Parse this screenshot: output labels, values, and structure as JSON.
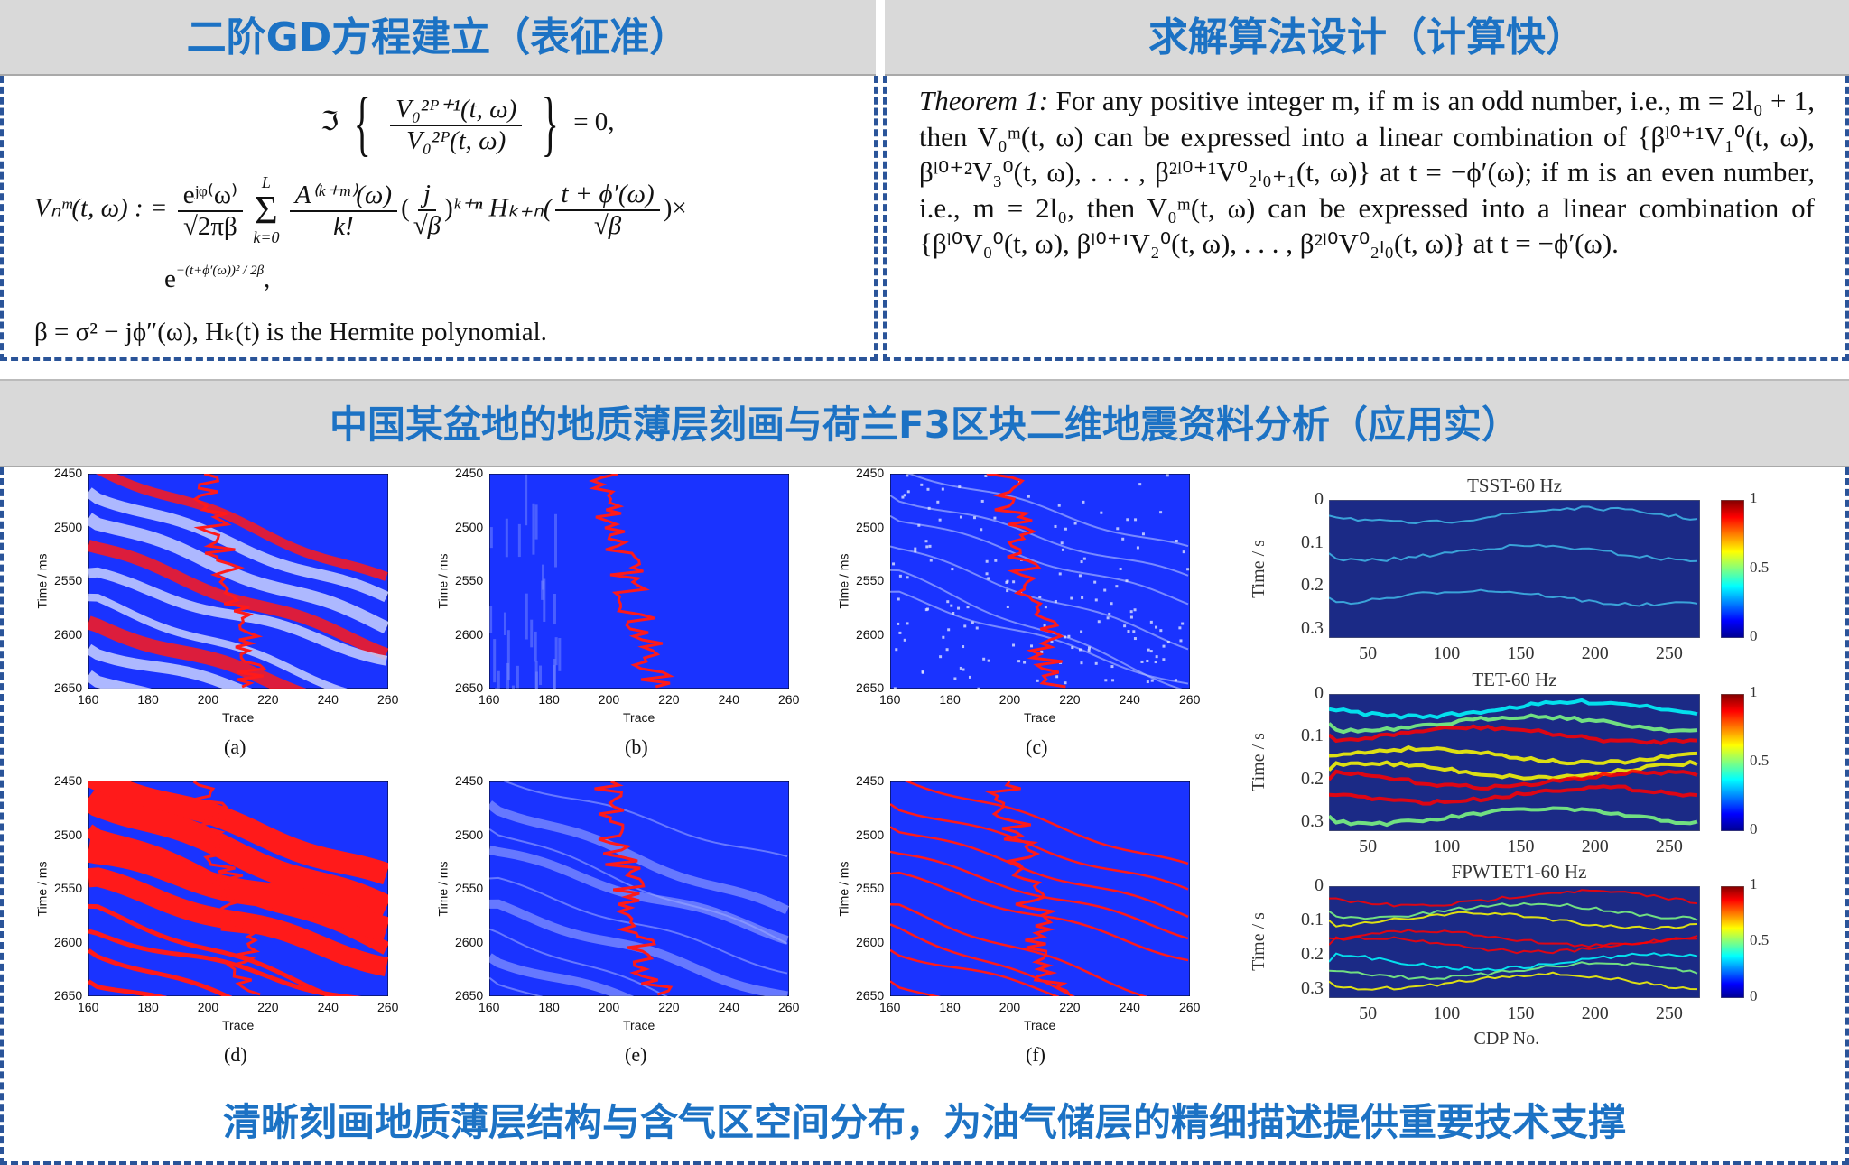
{
  "top_left": {
    "title": "二阶GD方程建立（表征准）",
    "eq1_prefix": "ℑ",
    "eq1_num": "V₀²ᴾ⁺¹(t, ω)",
    "eq1_den": "V₀²ᴾ(t, ω)",
    "eq1_suffix": "= 0,",
    "eq2_lhs": "Vₙᵐ(t, ω) : =",
    "eq2_f1_num": "eʲᵠ⁽ω⁾",
    "eq2_f1_den": "√2πβ",
    "eq2_sum": "Σ",
    "eq2_sum_top": "L",
    "eq2_sum_bot": "k=0",
    "eq2_f2_num": "A⁽ᵏ⁺ᵐ⁾(ω)",
    "eq2_f2_den": "k!",
    "eq2_f3_num": "j",
    "eq2_f3_den": "√β",
    "eq2_hermite": "ᵏ⁺ⁿ Hₖ₊ₙ(",
    "eq2_f4_num": "t + ϕ′(ω)",
    "eq2_f4_den": "√β",
    "eq2_times": ")×",
    "eq2_exp": "e",
    "eq2_exp_sup": "−(t+ϕ′(ω))² / 2β",
    "eq2_exp_end": ",",
    "eq3": "β = σ² − jϕ″(ω), Hₖ(t) is the Hermite polynomial."
  },
  "top_right": {
    "title": "求解算法设计（计算快）",
    "theorem_label": "Theorem 1:",
    "theorem_text": "For any positive integer m, if m is an odd number, i.e., m = 2l₀ + 1, then V₀ᵐ(t, ω) can be expressed into a linear combination of {βˡ⁰⁺¹V₁⁰(t, ω), βˡ⁰⁺²V₃⁰(t, ω), . . . , β²ˡ⁰⁺¹V⁰₂ₗ₀₊₁(t, ω)} at t = −ϕ′(ω); if m is an even number, i.e., m = 2l₀, then V₀ᵐ(t, ω) can be expressed into a linear combination of {βˡ⁰V₀⁰(t, ω), βˡ⁰⁺¹V₂⁰(t, ω), . . . , β²ˡ⁰V⁰₂ₗ₀(t, ω)} at t = −ϕ′(ω)."
  },
  "middle": {
    "title": "中国某盆地的地质薄层刻画与荷兰F3区块二维地震资料分析（应用实）"
  },
  "seismic_plots": {
    "xlabel": "Trace",
    "ylabel": "Time / ms",
    "xticks": [
      "160",
      "180",
      "200",
      "220",
      "240",
      "260"
    ],
    "yticks": [
      "2450",
      "2500",
      "2550",
      "2600",
      "2650"
    ],
    "captions": [
      "(a)",
      "(b)",
      "(c)",
      "(d)",
      "(e)",
      "(f)"
    ],
    "colors": {
      "background": "#1a33ff",
      "curve": "#ff1a1a",
      "highlight": "#ffffff"
    }
  },
  "tf_plots": {
    "titles": [
      "TSST-60 Hz",
      "TET-60 Hz",
      "FPWTET1-60 Hz"
    ],
    "ylabel": "Time / s",
    "xlabel": "CDP No.",
    "xticks": [
      "50",
      "100",
      "150",
      "200",
      "250"
    ],
    "yticks": [
      "0",
      "0.1",
      "0.2",
      "0.3"
    ],
    "colorbar_ticks": [
      "1",
      "0.5",
      "0"
    ],
    "colormap": "jet"
  },
  "footer": {
    "text": "清晰刻画地质薄层结构与含气区空间分布，为油气储层的精细描述提供重要技术支撑"
  }
}
